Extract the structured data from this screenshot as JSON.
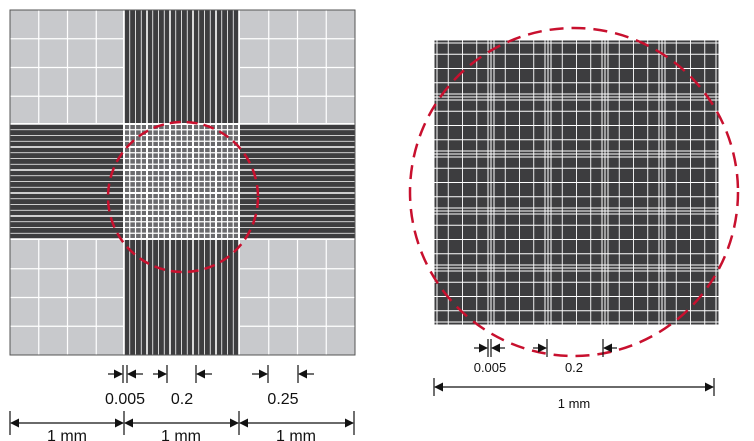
{
  "left_figure": {
    "labels": {
      "fine": "0.005",
      "medium": "0.2",
      "coarse": "0.25",
      "span_1": "1 mm",
      "span_2": "1 mm",
      "span_3": "1 mm"
    }
  },
  "right_figure": {
    "labels": {
      "fine": "0.005",
      "medium": "0.2",
      "span": "1 mm"
    }
  },
  "colors": {
    "light_square": "#c8c9cc",
    "dark_band": "#3d3d3f",
    "grid_line": "#ffffff",
    "circle": "#c8102e",
    "annotation": "#111111"
  }
}
